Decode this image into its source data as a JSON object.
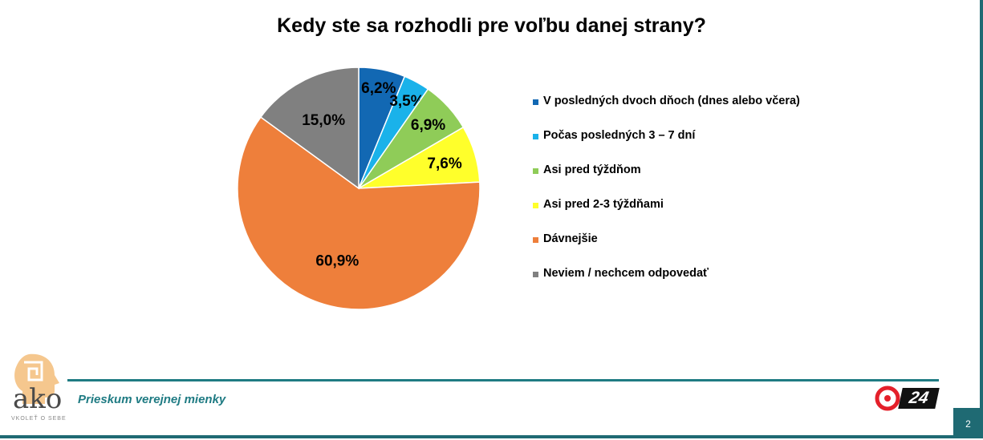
{
  "title": "Kedy ste sa rozhodli pre voľbu danej strany?",
  "footer_text": "Prieskum verejnej mienky",
  "page_number": "2",
  "logos": {
    "ako_word": "ako",
    "ako_tagline": "VKOLEŤ O SEBE",
    "tv_badge": "24"
  },
  "colors": {
    "accent": "#1f7b83",
    "border": "#1f6a73"
  },
  "chart_data": {
    "type": "pie",
    "title": "Kedy ste sa rozhodli pre voľbu danej strany?",
    "legend_position": "right",
    "slices": [
      {
        "label": "V posledných dvoch dňoch (dnes alebo včera)",
        "value": 6.2,
        "value_label": "6,2%",
        "color": "#1268b3"
      },
      {
        "label": "Počas posledných 3 – 7 dní",
        "value": 3.5,
        "value_label": "3,5%",
        "color": "#1ab2ea"
      },
      {
        "label": "Asi pred týždňom",
        "value": 6.9,
        "value_label": "6,9%",
        "color": "#8fcc58"
      },
      {
        "label": "Asi pred 2-3 týždňami",
        "value": 7.6,
        "value_label": "7,6%",
        "color": "#ffff2b"
      },
      {
        "label": "Dávnejšie",
        "value": 60.9,
        "value_label": "60,9%",
        "color": "#ee7f3b"
      },
      {
        "label": "Neviem / nechcem odpovedať",
        "value": 15.0,
        "value_label": "15,0%",
        "color": "#808080"
      }
    ]
  }
}
